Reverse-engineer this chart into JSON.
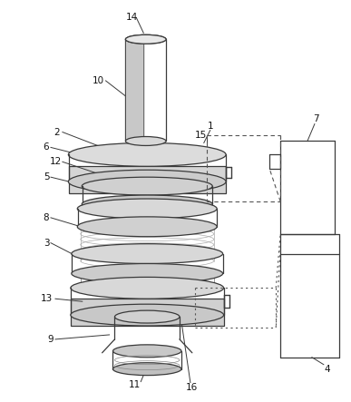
{
  "bg_color": "#ffffff",
  "line_color": "#3a3a3a",
  "dashed_color": "#555555",
  "label_color": "#111111",
  "figsize": [
    3.87,
    4.43
  ],
  "dpi": 100,
  "label_fs": 7.5
}
